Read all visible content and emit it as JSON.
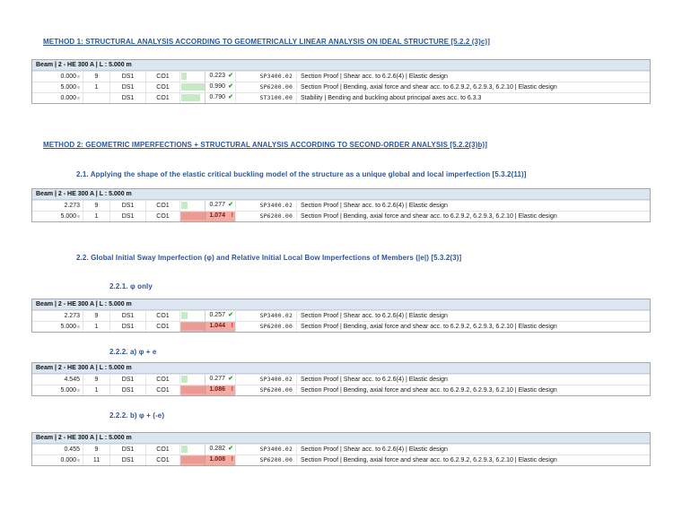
{
  "colors": {
    "heading_blue": "#2A5699",
    "table_header_bg": "#DCE6F1",
    "pass_bar_green": "#C6E9C6",
    "fail_bar_red": "#F2ACA6",
    "pass_check_green": "#21A121",
    "fail_mark_red": "#E01212"
  },
  "headings": {
    "method1": "METHOD 1: STRUCTURAL ANALYSIS ACCORDING TO GEOMETRICALLY LINEAR ANALYSIS ON IDEAL STRUCTURE [5.2.2 (3)c)]",
    "method2": "METHOD 2: GEOMETRIC IMPERFECTIONS + STRUCTURAL ANALYSIS ACCORDING TO SECOND-ORDER ANALYSIS [5.2.2(3)b)]",
    "s21": "2.1. Applying the shape of the elastic critical buckling model of the structure as a unique global and local imperfection [5.3.2(11)]",
    "s22": "2.2. Global Initial Sway Imperfection (φ) and Relative Initial Local Bow Imperfections of Members (|e|) [5.3.2(3)]",
    "s221": "2.2.1. φ only",
    "s222a": "2.2.2. a) φ + e",
    "s222b": "2.2.2. b) φ + (-e)"
  },
  "beam_header": "Beam | 2 - HE 300 A | L : 5.000 m",
  "tables": [
    {
      "name": "method1-linear-analysis-results",
      "rows": [
        {
          "location": "0.000",
          "loc_mark": "≡",
          "no": "9",
          "ds": "DS1",
          "co": "CO1",
          "ratio": 0.223,
          "ratio_text": "0.223",
          "status": "pass",
          "code": "SP3400.02",
          "description": "Section Proof | Shear acc. to 6.2.6(4) | Elastic design"
        },
        {
          "location": "5.000",
          "loc_mark": "≡",
          "no": "1",
          "ds": "DS1",
          "co": "CO1",
          "ratio": 0.99,
          "ratio_text": "0.990",
          "status": "pass",
          "code": "SP6200.00",
          "description": "Section Proof | Bending, axial force and shear acc. to 6.2.9.2, 6.2.9.3, 6.2.10 | Elastic design"
        },
        {
          "location": "0.000",
          "loc_mark": "≡",
          "no": "",
          "ds": "DS1",
          "co": "CO1",
          "ratio": 0.79,
          "ratio_text": "0.790",
          "status": "pass",
          "code": "ST3100.00",
          "description": "Stability | Bending and buckling about principal axes acc. to 6.3.3"
        }
      ]
    },
    {
      "name": "method2-buckling-shape-imperfection-results",
      "rows": [
        {
          "location": "2.273",
          "loc_mark": "",
          "no": "9",
          "ds": "DS1",
          "co": "CO1",
          "ratio": 0.277,
          "ratio_text": "0.277",
          "status": "pass",
          "code": "SP3400.02",
          "description": "Section Proof | Shear acc. to 6.2.6(4) | Elastic design"
        },
        {
          "location": "5.000",
          "loc_mark": "≡",
          "no": "1",
          "ds": "DS1",
          "co": "CO1",
          "ratio": 1.074,
          "ratio_text": "1.074",
          "status": "fail",
          "code": "SP6200.00",
          "description": "Section Proof | Bending, axial force and shear acc. to 6.2.9.2, 6.2.9.3, 6.2.10 | Elastic design"
        }
      ]
    },
    {
      "name": "phi-only-results",
      "rows": [
        {
          "location": "2.273",
          "loc_mark": "",
          "no": "9",
          "ds": "DS1",
          "co": "CO1",
          "ratio": 0.257,
          "ratio_text": "0.257",
          "status": "pass",
          "code": "SP3400.02",
          "description": "Section Proof | Shear acc. to 6.2.6(4) | Elastic design"
        },
        {
          "location": "5.000",
          "loc_mark": "≡",
          "no": "1",
          "ds": "DS1",
          "co": "CO1",
          "ratio": 1.044,
          "ratio_text": "1.044",
          "status": "fail",
          "code": "SP6200.00",
          "description": "Section Proof | Bending, axial force and shear acc. to 6.2.9.2, 6.2.9.3, 6.2.10 | Elastic design"
        }
      ]
    },
    {
      "name": "phi-plus-e-results",
      "rows": [
        {
          "location": "4.545",
          "loc_mark": "",
          "no": "9",
          "ds": "DS1",
          "co": "CO1",
          "ratio": 0.277,
          "ratio_text": "0.277",
          "status": "pass",
          "code": "SP3400.02",
          "description": "Section Proof | Shear acc. to 6.2.6(4) | Elastic design"
        },
        {
          "location": "5.000",
          "loc_mark": "≡",
          "no": "1",
          "ds": "DS1",
          "co": "CO1",
          "ratio": 1.086,
          "ratio_text": "1.086",
          "status": "fail",
          "code": "SP6200.00",
          "description": "Section Proof | Bending, axial force and shear acc. to 6.2.9.2, 6.2.9.3, 6.2.10 | Elastic design"
        }
      ]
    },
    {
      "name": "phi-plus-negative-e-results",
      "rows": [
        {
          "location": "0.455",
          "loc_mark": "",
          "no": "9",
          "ds": "DS1",
          "co": "CO1",
          "ratio": 0.282,
          "ratio_text": "0.282",
          "status": "pass",
          "code": "SP3400.02",
          "description": "Section Proof | Shear acc. to 6.2.6(4) | Elastic design"
        },
        {
          "location": "0.000",
          "loc_mark": "≡",
          "no": "11",
          "ds": "DS1",
          "co": "CO1",
          "ratio": 1.008,
          "ratio_text": "1.008",
          "status": "fail",
          "code": "SP6200.00",
          "description": "Section Proof | Bending, axial force and shear acc. to 6.2.9.2, 6.2.9.3, 6.2.10 | Elastic design"
        }
      ]
    }
  ],
  "status_icons": {
    "pass": "✔",
    "fail": "!"
  }
}
